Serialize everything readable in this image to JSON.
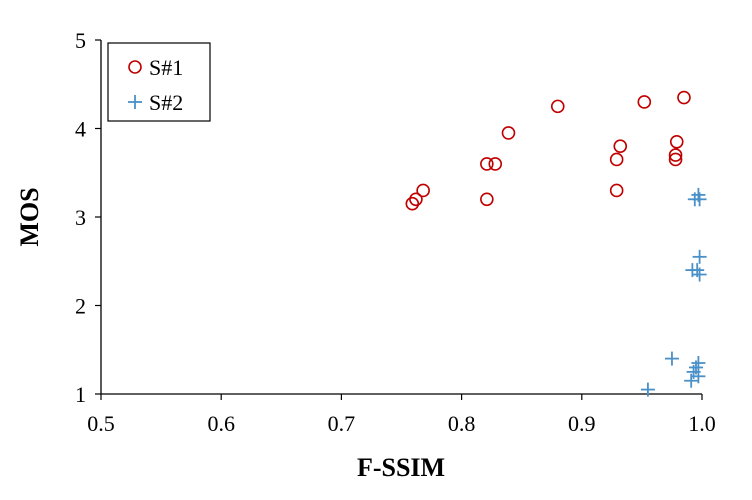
{
  "chart_data": {
    "type": "scatter",
    "xlabel": "F-SSIM",
    "ylabel": "MOS",
    "xlim": [
      0.5,
      1.0
    ],
    "ylim": [
      1,
      5
    ],
    "x_ticks": [
      "0.5",
      "0.6",
      "0.7",
      "0.8",
      "0.9",
      "1.0"
    ],
    "y_ticks": [
      "1",
      "2",
      "3",
      "4",
      "5"
    ],
    "grid": false,
    "legend_position": "top-left",
    "series": [
      {
        "name": "S#1",
        "marker": "circle-open",
        "color": "#c00000",
        "points": [
          [
            0.759,
            3.15
          ],
          [
            0.762,
            3.2
          ],
          [
            0.768,
            3.3
          ],
          [
            0.821,
            3.2
          ],
          [
            0.821,
            3.6
          ],
          [
            0.828,
            3.6
          ],
          [
            0.839,
            3.95
          ],
          [
            0.88,
            4.25
          ],
          [
            0.929,
            3.3
          ],
          [
            0.929,
            3.65
          ],
          [
            0.932,
            3.8
          ],
          [
            0.952,
            4.3
          ],
          [
            0.978,
            3.65
          ],
          [
            0.978,
            3.7
          ],
          [
            0.979,
            3.85
          ],
          [
            0.985,
            4.35
          ]
        ]
      },
      {
        "name": "S#2",
        "marker": "plus",
        "color": "#4a90c8",
        "points": [
          [
            0.955,
            1.05
          ],
          [
            0.975,
            1.4
          ],
          [
            0.991,
            1.15
          ],
          [
            0.993,
            1.25
          ],
          [
            0.995,
            1.3
          ],
          [
            0.997,
            1.2
          ],
          [
            0.997,
            1.35
          ],
          [
            0.992,
            2.4
          ],
          [
            0.996,
            2.4
          ],
          [
            0.998,
            2.35
          ],
          [
            0.998,
            2.55
          ],
          [
            0.994,
            3.2
          ],
          [
            0.997,
            3.25
          ],
          [
            0.998,
            3.2
          ]
        ]
      }
    ]
  }
}
